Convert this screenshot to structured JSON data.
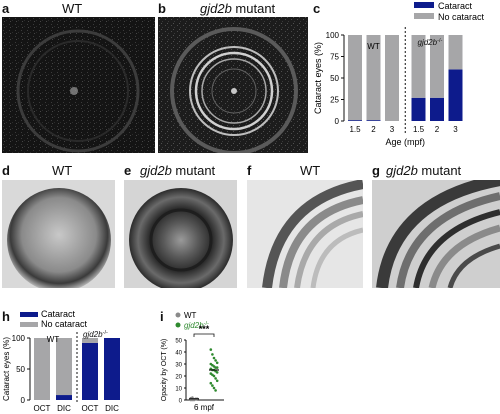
{
  "panels": {
    "a": {
      "letter": "a",
      "title": "WT"
    },
    "b": {
      "letter": "b",
      "title_italic": "gjd2b",
      "title_rest": " mutant"
    },
    "c": {
      "letter": "c"
    },
    "d": {
      "letter": "d",
      "title": "WT"
    },
    "e": {
      "letter": "e",
      "title_italic": "gjd2b",
      "title_rest": " mutant"
    },
    "f": {
      "letter": "f",
      "title": "WT"
    },
    "g": {
      "letter": "g",
      "title_italic": "gjd2b",
      "title_rest": " mutant"
    },
    "h": {
      "letter": "h"
    },
    "i": {
      "letter": "i"
    }
  },
  "colors": {
    "cataract": "#0d1b8c",
    "no_cataract": "#a6a6a8",
    "mutant_green": "#2f8a2f",
    "wt_gray": "#8a8a8a"
  },
  "chart_data": [
    {
      "id": "c",
      "type": "bar",
      "stacked": true,
      "ylabel": "Cataract eyes (%)",
      "xlabel": "Age (mpf)",
      "ylim": [
        0,
        100
      ],
      "yticks": [
        0,
        25,
        50,
        75,
        100
      ],
      "legend": [
        "Cataract",
        "No cataract"
      ],
      "legend_position": "top-right",
      "group_labels": [
        "WT",
        "gjd2b-/-"
      ],
      "categories": [
        "1.5",
        "2",
        "3",
        "1.5",
        "2",
        "3"
      ],
      "series": [
        {
          "name": "Cataract",
          "values": [
            1,
            1,
            0,
            27,
            27,
            60
          ]
        },
        {
          "name": "No cataract",
          "values": [
            99,
            99,
            100,
            73,
            73,
            40
          ]
        }
      ]
    },
    {
      "id": "h",
      "type": "bar",
      "stacked": true,
      "ylabel": "Cataract eyes (%)",
      "ylim": [
        0,
        100
      ],
      "yticks": [
        0,
        50,
        100
      ],
      "legend": [
        "Cataract",
        "No cataract"
      ],
      "legend_position": "top",
      "group_labels": [
        "WT",
        "gjd2b-/-"
      ],
      "categories": [
        "OCT",
        "DIC",
        "OCT",
        "DIC"
      ],
      "series": [
        {
          "name": "Cataract",
          "values": [
            0,
            8,
            92,
            100
          ]
        },
        {
          "name": "No cataract",
          "values": [
            100,
            92,
            8,
            0
          ]
        }
      ]
    },
    {
      "id": "i",
      "type": "scatter",
      "ylabel": "Opacity by OCT (%)",
      "xlabel": "6 mpf",
      "ylim": [
        0,
        50
      ],
      "yticks": [
        0,
        10,
        20,
        30,
        40,
        50
      ],
      "legend": [
        "WT",
        "gjd2b-/-"
      ],
      "significance": "***",
      "groups": [
        {
          "name": "WT",
          "mean": 1,
          "values": [
            0,
            0,
            0.5,
            1,
            1,
            1.5,
            2,
            0,
            0.5,
            1
          ]
        },
        {
          "name": "gjd2b-/-",
          "mean": 25,
          "values": [
            42,
            38,
            35,
            33,
            31,
            30,
            29,
            28,
            27,
            27,
            26,
            25,
            25,
            24,
            23,
            22,
            21,
            20,
            18,
            16,
            14,
            12,
            10,
            8
          ]
        }
      ]
    }
  ]
}
